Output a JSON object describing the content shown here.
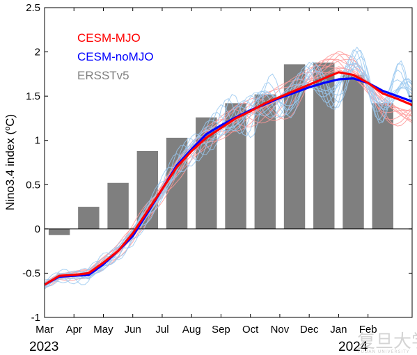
{
  "chart_data": {
    "type": "bar+line",
    "title": "",
    "xlabel": "",
    "ylabel": "Nino3.4 index (°C)",
    "ylabel_prefix": "Nino3.4 index (",
    "ylabel_degree": "o",
    "ylabel_suffix": "C)",
    "ylim": [
      -1,
      2.5
    ],
    "yticks": [
      -1,
      -0.5,
      0,
      0.5,
      1,
      1.5,
      2,
      2.5
    ],
    "ytick_labels": [
      "-1",
      "-0.5",
      "0",
      "0.5",
      "1",
      "1.5",
      "2",
      "2.5"
    ],
    "xlim": [
      0,
      12.5
    ],
    "month_ticks": [
      0,
      1,
      2,
      3,
      4,
      5,
      6,
      7,
      8,
      9,
      10,
      11
    ],
    "month_labels": [
      "Mar",
      "Apr",
      "May",
      "Jun",
      "Jul",
      "Aug",
      "Sep",
      "Oct",
      "Nov",
      "Dec",
      "Jan",
      "Feb"
    ],
    "year_labels": [
      "2023",
      "2024"
    ],
    "legend_placement": "top-left",
    "legend": [
      {
        "label": "CESM-MJO",
        "color": "#ff0000"
      },
      {
        "label": "CESM-noMJO",
        "color": "#0000ff"
      },
      {
        "label": "ERSSTv5",
        "color": "#808080"
      }
    ],
    "bars": {
      "name": "ERSSTv5",
      "color": "#7f7f7f",
      "categories": [
        "Mar",
        "Apr",
        "May",
        "Jun",
        "Jul",
        "Aug",
        "Sep",
        "Oct",
        "Nov",
        "Dec",
        "Jan",
        "Feb"
      ],
      "values": [
        -0.07,
        0.25,
        0.52,
        0.88,
        1.03,
        1.26,
        1.42,
        1.52,
        1.86,
        1.88,
        1.74,
        1.42
      ]
    },
    "series": [
      {
        "name": "CESM-MJO",
        "color": "#ff0000",
        "x": [
          0,
          0.5,
          1,
          1.5,
          2,
          2.5,
          3,
          3.5,
          4,
          4.5,
          5,
          5.5,
          6,
          6.5,
          7,
          7.5,
          8,
          8.5,
          9,
          9.5,
          10,
          10.5,
          11,
          11.5,
          12,
          12.5
        ],
        "values": [
          -0.63,
          -0.53,
          -0.52,
          -0.5,
          -0.38,
          -0.25,
          -0.05,
          0.2,
          0.45,
          0.7,
          0.88,
          1.03,
          1.14,
          1.25,
          1.33,
          1.42,
          1.49,
          1.56,
          1.63,
          1.7,
          1.77,
          1.74,
          1.65,
          1.53,
          1.47,
          1.4
        ]
      },
      {
        "name": "CESM-noMJO",
        "color": "#0000ff",
        "x": [
          0,
          0.5,
          1,
          1.5,
          2,
          2.5,
          3,
          3.5,
          4,
          4.5,
          5,
          5.5,
          6,
          6.5,
          7,
          7.5,
          8,
          8.5,
          9,
          9.5,
          10,
          10.5,
          11,
          11.5,
          12,
          12.5
        ],
        "values": [
          -0.63,
          -0.54,
          -0.53,
          -0.52,
          -0.4,
          -0.25,
          -0.08,
          0.18,
          0.45,
          0.72,
          0.9,
          1.07,
          1.17,
          1.26,
          1.34,
          1.41,
          1.48,
          1.54,
          1.6,
          1.65,
          1.69,
          1.7,
          1.65,
          1.56,
          1.5,
          1.44
        ]
      }
    ],
    "ensemble_red_color": "#ff9999",
    "ensemble_blue_color": "#99c8f0"
  },
  "watermark": {
    "text": "复旦大学",
    "subtext": "FUDAN UNIVERSITY"
  }
}
